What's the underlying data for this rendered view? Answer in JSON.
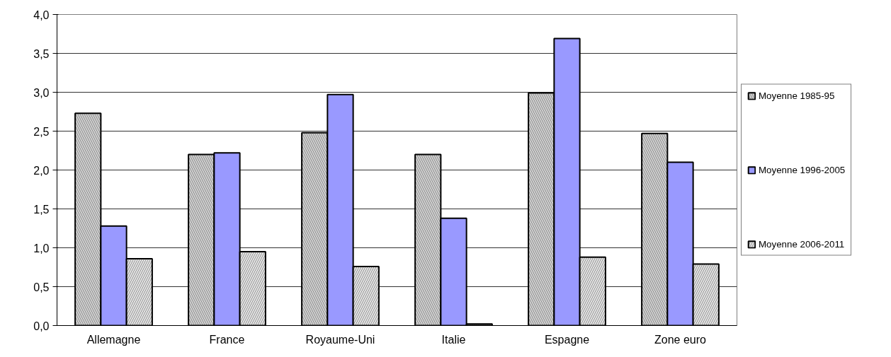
{
  "chart_data": {
    "type": "bar",
    "categories": [
      "Allemagne",
      "France",
      "Royaume-Uni",
      "Italie",
      "Espagne",
      "Zone euro"
    ],
    "series": [
      {
        "name": "Moyenne 1985-95",
        "color": "#d0d0d0",
        "values": [
          2.73,
          2.2,
          2.48,
          2.2,
          2.99,
          2.47
        ]
      },
      {
        "name": "Moyenne 1996-2005",
        "color": "#9999ff",
        "values": [
          1.28,
          2.22,
          2.97,
          1.38,
          3.69,
          2.1
        ]
      },
      {
        "name": "Moyenne 2006-2011",
        "color": "#e4e4e4",
        "values": [
          0.86,
          0.95,
          0.76,
          0.02,
          0.88,
          0.79
        ]
      }
    ],
    "ylim": [
      0,
      4
    ],
    "yticks": [
      {
        "value": 0,
        "label": "0,0"
      },
      {
        "value": 0.5,
        "label": "0,5"
      },
      {
        "value": 1,
        "label": "1,0"
      },
      {
        "value": 1.5,
        "label": "1,5"
      },
      {
        "value": 2,
        "label": "2,0"
      },
      {
        "value": 2.5,
        "label": "2,5"
      },
      {
        "value": 3,
        "label": "3,0"
      },
      {
        "value": 3.5,
        "label": "3,5"
      },
      {
        "value": 4,
        "label": "4,0"
      }
    ],
    "grid": "y",
    "legend": "right"
  }
}
